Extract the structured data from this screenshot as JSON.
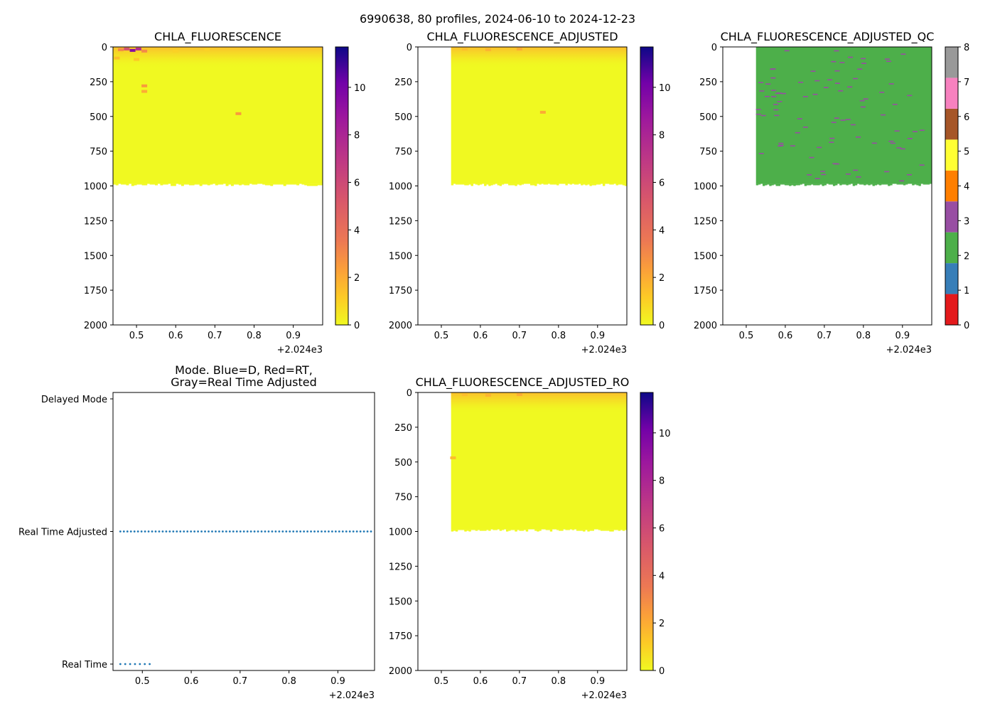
{
  "suptitle": "6990638, 80 profiles, 2024-06-10 to 2024-12-23",
  "chart_data": [
    {
      "id": "chla",
      "type": "heatmap",
      "title": "CHLA_FLUORESCENCE",
      "x_range": [
        0.44,
        0.975
      ],
      "x_ticks": [
        "0.5",
        "0.6",
        "0.7",
        "0.8",
        "0.9"
      ],
      "x_offset_label": "+2.024e3",
      "y_range": [
        0,
        2000
      ],
      "y_inverted": true,
      "y_ticks": [
        "0",
        "250",
        "500",
        "750",
        "1000",
        "1250",
        "1500",
        "1750",
        "2000"
      ],
      "data_x_start": 0.44,
      "data_x_end": 0.975,
      "data_depth_bottom": 985,
      "colorbar": {
        "colormap": "plasma_r",
        "range": [
          0,
          11.7
        ],
        "ticks": [
          "0",
          "2",
          "4",
          "6",
          "8",
          "10"
        ]
      },
      "surface_features": [
        {
          "x": 0.46,
          "depth": 20,
          "value": 3.0
        },
        {
          "x": 0.475,
          "depth": 15,
          "value": 5.5
        },
        {
          "x": 0.49,
          "depth": 25,
          "value": 9.5
        },
        {
          "x": 0.505,
          "depth": 15,
          "value": 7.5
        },
        {
          "x": 0.52,
          "depth": 30,
          "value": 3.0
        },
        {
          "x": 0.45,
          "depth": 80,
          "value": 1.5
        },
        {
          "x": 0.5,
          "depth": 90,
          "value": 1.2
        },
        {
          "x": 0.52,
          "depth": 280,
          "value": 2.5
        },
        {
          "x": 0.52,
          "depth": 320,
          "value": 2.0
        },
        {
          "x": 0.6,
          "depth": 30,
          "value": 1.0
        },
        {
          "x": 0.68,
          "depth": 20,
          "value": 1.0
        },
        {
          "x": 0.76,
          "depth": 480,
          "value": 2.5
        }
      ]
    },
    {
      "id": "chla_adj",
      "type": "heatmap",
      "title": "CHLA_FLUORESCENCE_ADJUSTED",
      "x_range": [
        0.44,
        0.975
      ],
      "x_ticks": [
        "0.5",
        "0.6",
        "0.7",
        "0.8",
        "0.9"
      ],
      "x_offset_label": "+2.024e3",
      "y_range": [
        0,
        2000
      ],
      "y_inverted": true,
      "y_ticks": [
        "0",
        "250",
        "500",
        "750",
        "1000",
        "1250",
        "1500",
        "1750",
        "2000"
      ],
      "data_x_start": 0.525,
      "data_x_end": 0.975,
      "data_depth_bottom": 985,
      "colorbar": {
        "colormap": "plasma_r",
        "range": [
          0,
          11.7
        ],
        "ticks": [
          "0",
          "2",
          "4",
          "6",
          "8",
          "10"
        ]
      },
      "surface_features": [
        {
          "x": 0.56,
          "depth": 15,
          "value": 1.5
        },
        {
          "x": 0.62,
          "depth": 20,
          "value": 1.8
        },
        {
          "x": 0.7,
          "depth": 15,
          "value": 2.0
        },
        {
          "x": 0.76,
          "depth": 470,
          "value": 2.0
        }
      ]
    },
    {
      "id": "chla_adj_qc",
      "type": "heatmap",
      "title": "CHLA_FLUORESCENCE_ADJUSTED_QC",
      "x_range": [
        0.44,
        0.975
      ],
      "x_ticks": [
        "0.5",
        "0.6",
        "0.7",
        "0.8",
        "0.9"
      ],
      "x_offset_label": "+2.024e3",
      "y_range": [
        0,
        2000
      ],
      "y_inverted": true,
      "y_ticks": [
        "0",
        "250",
        "500",
        "750",
        "1000",
        "1250",
        "1500",
        "1750",
        "2000"
      ],
      "data_x_start": 0.525,
      "data_x_end": 0.975,
      "data_depth_bottom": 985,
      "dominant_flag": 2,
      "minor_flag": 3,
      "colorbar": {
        "type": "discrete",
        "range": [
          0,
          8
        ],
        "ticks": [
          "0",
          "1",
          "2",
          "3",
          "4",
          "5",
          "6",
          "7",
          "8"
        ],
        "colors": [
          "#e41a1c",
          "#377eb8",
          "#4daf4a",
          "#984ea3",
          "#ff7f00",
          "#ffff33",
          "#a65628",
          "#f781bf",
          "#999999"
        ]
      }
    },
    {
      "id": "mode",
      "type": "scatter",
      "title_lines": [
        "Mode. Blue=D, Red=RT,",
        "Gray=Real Time Adjusted"
      ],
      "x_range": [
        0.44,
        0.975
      ],
      "x_ticks": [
        "0.5",
        "0.6",
        "0.7",
        "0.8",
        "0.9"
      ],
      "x_offset_label": "+2.024e3",
      "y_categories": [
        "Real Time",
        "Real Time Adjusted",
        "Delayed Mode"
      ],
      "marker_color": "#1f77b4",
      "series": [
        {
          "name": "Real Time Adjusted",
          "y": "Real Time Adjusted",
          "x_start": 0.455,
          "x_end": 0.975,
          "count": 73
        },
        {
          "name": "Real Time",
          "y": "Real Time",
          "x_start": 0.455,
          "x_end": 0.515,
          "count": 7
        }
      ]
    },
    {
      "id": "chla_adj_ro",
      "type": "heatmap",
      "title": "CHLA_FLUORESCENCE_ADJUSTED_RO",
      "x_range": [
        0.44,
        0.975
      ],
      "x_ticks": [
        "0.5",
        "0.6",
        "0.7",
        "0.8",
        "0.9"
      ],
      "x_offset_label": "+2.024e3",
      "y_range": [
        0,
        2000
      ],
      "y_inverted": true,
      "y_ticks": [
        "0",
        "250",
        "500",
        "750",
        "1000",
        "1250",
        "1500",
        "1750",
        "2000"
      ],
      "data_x_start": 0.525,
      "data_x_end": 0.975,
      "data_depth_bottom": 985,
      "colorbar": {
        "colormap": "plasma_r",
        "range": [
          0,
          11.7
        ],
        "ticks": [
          "0",
          "2",
          "4",
          "6",
          "8",
          "10"
        ]
      },
      "surface_features": [
        {
          "x": 0.56,
          "depth": 15,
          "value": 1.5
        },
        {
          "x": 0.62,
          "depth": 20,
          "value": 1.8
        },
        {
          "x": 0.7,
          "depth": 15,
          "value": 2.0
        },
        {
          "x": 0.53,
          "depth": 470,
          "value": 1.5
        }
      ]
    }
  ]
}
